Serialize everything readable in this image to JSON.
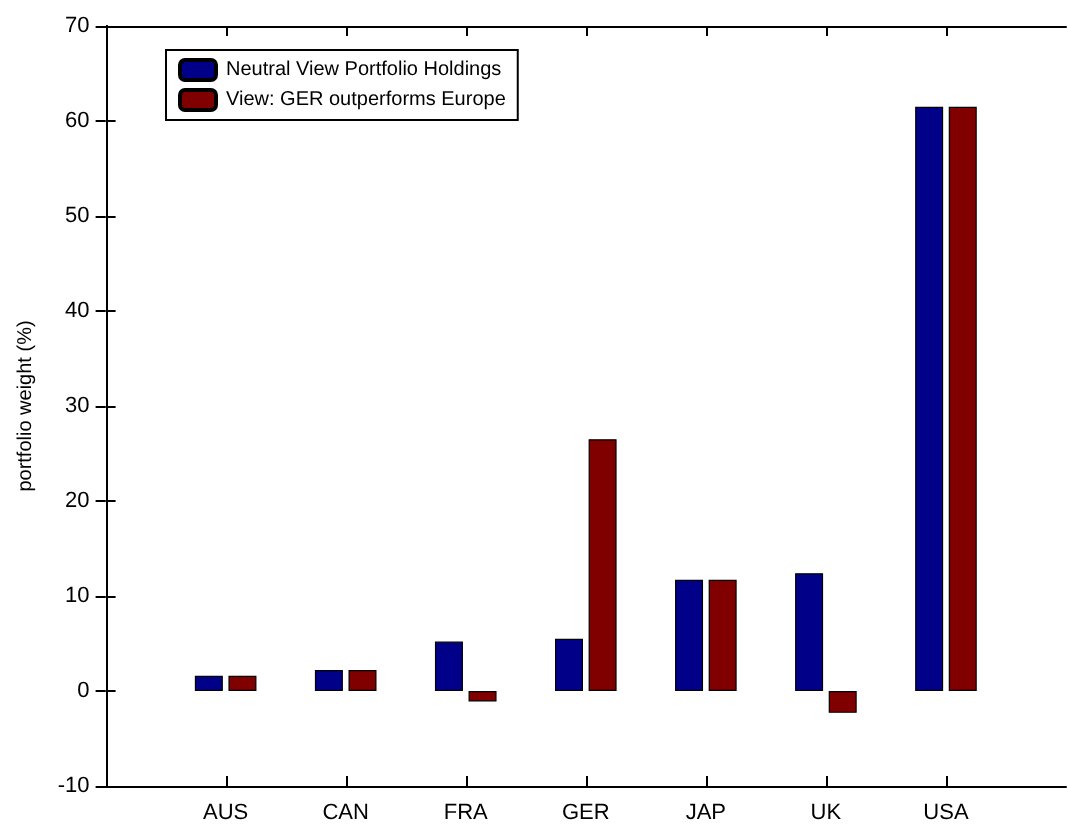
{
  "chart_data": {
    "type": "bar",
    "ylabel": "portfolio weight (%)",
    "categories": [
      "AUS",
      "CAN",
      "FRA",
      "GER",
      "JAP",
      "UK",
      "USA"
    ],
    "series": [
      {
        "name": "Neutral View Portfolio Holdings",
        "color": "#000088",
        "values": [
          1.6,
          2.2,
          5.2,
          5.5,
          11.7,
          12.4,
          61.5
        ]
      },
      {
        "name": "View: GER outperforms Europe",
        "color": "#800000",
        "values": [
          1.6,
          2.2,
          -1.1,
          26.5,
          11.7,
          -2.3,
          61.5
        ]
      }
    ],
    "ylim": [
      -10,
      70
    ],
    "yticks": [
      -10,
      0,
      10,
      20,
      30,
      40,
      50,
      60,
      70
    ],
    "grid": false,
    "legend": "top left"
  }
}
